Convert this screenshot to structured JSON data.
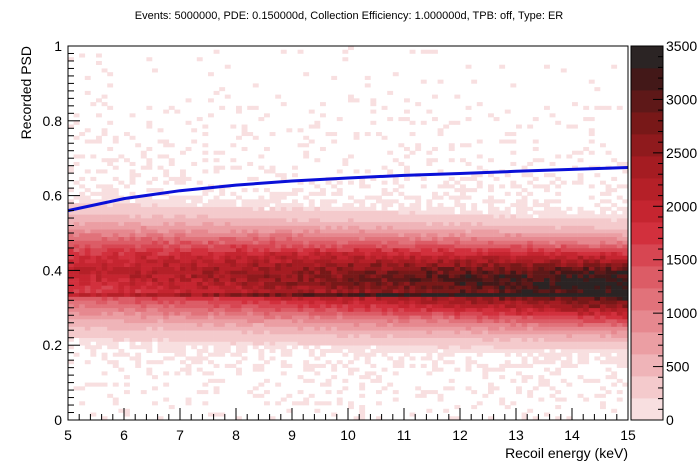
{
  "chart_data": {
    "type": "heatmap",
    "title": "Events: 5000000, PDE: 0.150000d, Collection Efficiency: 1.000000d, TPB: off, Type: ER",
    "xlabel": "Recoil energy (keV)",
    "ylabel": "Recorded PSD",
    "xlim": [
      5,
      15
    ],
    "ylim": [
      0,
      1
    ],
    "x_ticks": [
      "5",
      "6",
      "7",
      "8",
      "9",
      "10",
      "11",
      "12",
      "13",
      "14",
      "15"
    ],
    "y_ticks": [
      "0",
      "0.2",
      "0.4",
      "0.6",
      "0.8",
      "1"
    ],
    "colorbar": {
      "range": [
        0,
        3500
      ],
      "ticks": [
        "0",
        "500",
        "1000",
        "1500",
        "2000",
        "2500",
        "3000",
        "3500"
      ],
      "colors": [
        "#f8dfe0",
        "#f4cacc",
        "#efb4b8",
        "#eb9ea3",
        "#e6888f",
        "#e1727a",
        "#dc5c66",
        "#d74652",
        "#d2303d",
        "#c52530",
        "#b52028",
        "#a51c22",
        "#8f1a1d",
        "#781818",
        "#5e1818",
        "#431818",
        "#2b2424"
      ]
    },
    "density_bands": [
      {
        "psd": [
          0.2,
          0.6
        ],
        "level": "high"
      },
      {
        "psd": [
          0.3,
          0.45
        ],
        "level": "peak"
      }
    ],
    "curve": {
      "color": "#0a10d8",
      "x": [
        5,
        6,
        7,
        8,
        9,
        10,
        11,
        12,
        13,
        14,
        15
      ],
      "y": [
        0.56,
        0.592,
        0.613,
        0.628,
        0.639,
        0.647,
        0.654,
        0.659,
        0.665,
        0.67,
        0.675
      ]
    },
    "grid": false
  }
}
